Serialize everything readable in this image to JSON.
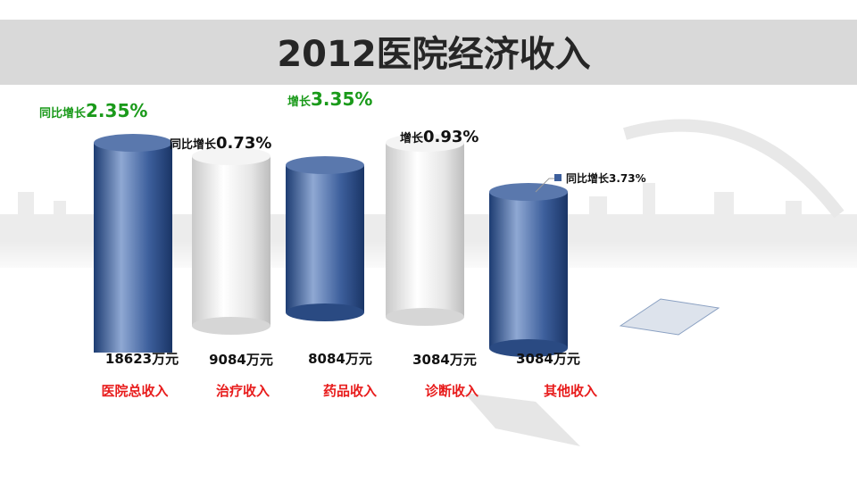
{
  "title": "2012医院经济收入",
  "items": [
    {
      "category": "医院总收入",
      "amount": "18623万元",
      "growth_prefix": "同比增长",
      "growth": "2.35%"
    },
    {
      "category": "治疗收入",
      "amount": "9084万元",
      "growth_prefix": "同比增长",
      "growth": "0.73%"
    },
    {
      "category": "药品收入",
      "amount": "8084万元",
      "growth_prefix": "增长",
      "growth": "3.35%"
    },
    {
      "category": "诊断收入",
      "amount": "3084万元",
      "growth_prefix": "增长",
      "growth": "0.93%"
    },
    {
      "category": "其他收入",
      "amount": "3084万元",
      "growth_prefix": "同比增长",
      "growth": "3.73%"
    }
  ]
}
